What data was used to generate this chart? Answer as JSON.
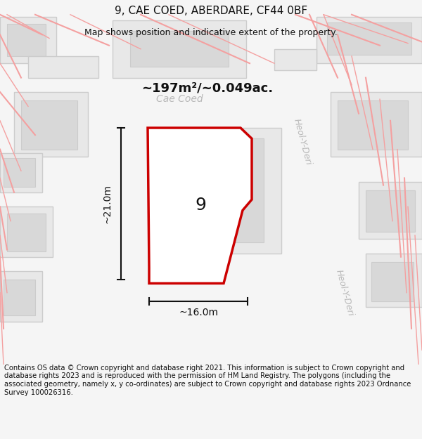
{
  "title": "9, CAE COED, ABERDARE, CF44 0BF",
  "subtitle": "Map shows position and indicative extent of the property.",
  "footer": "Contains OS data © Crown copyright and database right 2021. This information is subject to Crown copyright and database rights 2023 and is reproduced with the permission of HM Land Registry. The polygons (including the associated geometry, namely x, y co-ordinates) are subject to Crown copyright and database rights 2023 Ordnance Survey 100026316.",
  "area_label": "~197m²/~0.049ac.",
  "width_label": "~16.0m",
  "height_label": "~21.0m",
  "number_label": "9",
  "bg_color": "#f5f5f5",
  "map_bg": "#ffffff",
  "title_fontsize": 11,
  "subtitle_fontsize": 9,
  "footer_fontsize": 7.2,
  "label_fontsize": 13,
  "number_fontsize": 18,
  "street_label_color": "#aaaaaa",
  "building_fill": "#e8e8e8",
  "building_stroke": "#cccccc",
  "pink_color": "#f4a0a0",
  "red_color": "#cc0000",
  "dim_color": "#111111",
  "title_color": "#111111"
}
